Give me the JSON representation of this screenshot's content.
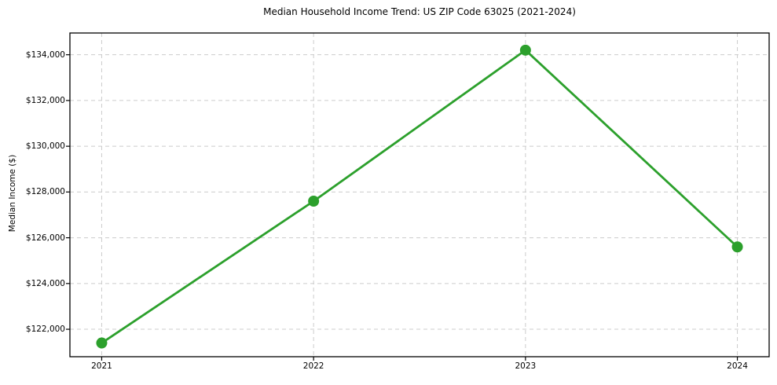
{
  "chart_data": {
    "type": "line",
    "title": "Median Household Income Trend: US ZIP Code 63025 (2021-2024)",
    "xlabel": "",
    "ylabel": "Median Income ($)",
    "x": [
      2021,
      2022,
      2023,
      2024
    ],
    "x_tick_labels": [
      "2021",
      "2022",
      "2023",
      "2024"
    ],
    "values": [
      121400,
      127600,
      134200,
      125600
    ],
    "y_ticks": [
      122000,
      124000,
      126000,
      128000,
      130000,
      132000,
      134000
    ],
    "y_tick_labels": [
      "$122,000",
      "$124,000",
      "$126,000",
      "$128,000",
      "$130,000",
      "$132,000",
      "$134,000"
    ],
    "ylim": [
      120800,
      134950
    ],
    "xlim": [
      2020.85,
      2024.15
    ],
    "grid": true,
    "grid_style": "dashed",
    "legend": false,
    "line_color": "#2ca02c",
    "marker": "circle",
    "grid_color": "#cccccc",
    "axis_color": "#000000",
    "background_color": "#ffffff"
  }
}
